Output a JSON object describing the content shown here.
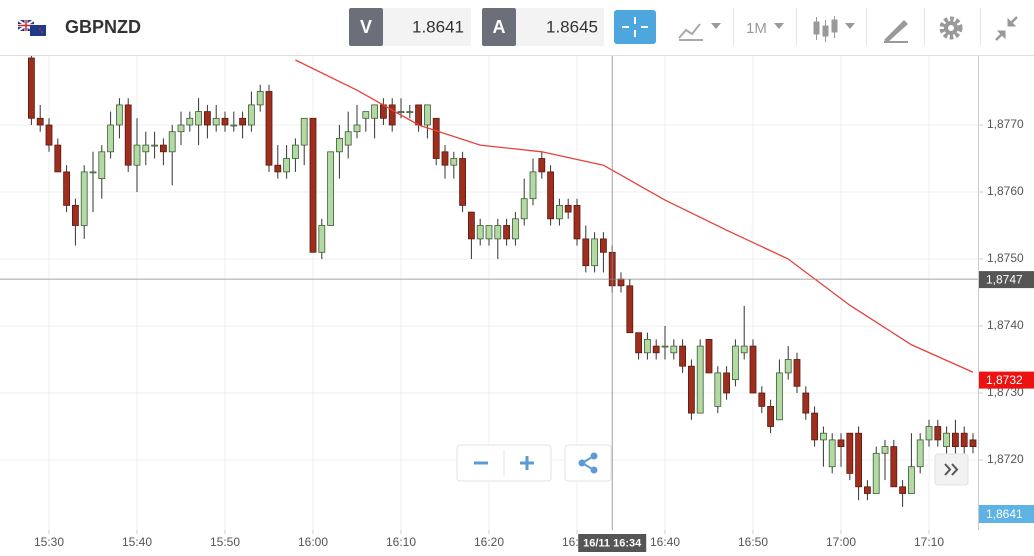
{
  "header": {
    "symbol": "GBPNZD",
    "bid_label": "V",
    "bid": "1.8641",
    "ask_label": "A",
    "ask": "1.8645",
    "timeframe": "1M"
  },
  "chart_data": {
    "type": "candlestick",
    "x": [
      "15:28",
      "15:29",
      "15:30",
      "15:31",
      "15:32",
      "15:33",
      "15:34",
      "15:35",
      "15:36",
      "15:37",
      "15:38",
      "15:39",
      "15:40",
      "15:41",
      "15:42",
      "15:43",
      "15:44",
      "15:45",
      "15:46",
      "15:47",
      "15:48",
      "15:49",
      "15:50",
      "15:51",
      "15:52",
      "15:53",
      "15:54",
      "15:55",
      "15:56",
      "15:57",
      "15:58",
      "15:59",
      "16:00",
      "16:01",
      "16:02",
      "16:03",
      "16:04",
      "16:05",
      "16:06",
      "16:07",
      "16:08",
      "16:09",
      "16:10",
      "16:11",
      "16:12",
      "16:13",
      "16:14",
      "16:15",
      "16:16",
      "16:17",
      "16:18",
      "16:19",
      "16:20",
      "16:21",
      "16:22",
      "16:23",
      "16:24",
      "16:25",
      "16:26",
      "16:27",
      "16:28",
      "16:29",
      "16:30",
      "16:31",
      "16:32",
      "16:33",
      "16:34",
      "16:35",
      "16:36",
      "16:37",
      "16:38",
      "16:39",
      "16:40",
      "16:41",
      "16:42",
      "16:43",
      "16:44",
      "16:45",
      "16:46",
      "16:47",
      "16:48",
      "16:49",
      "16:50",
      "16:51",
      "16:52",
      "16:53",
      "16:54",
      "16:55",
      "16:56",
      "16:57",
      "16:58",
      "16:59",
      "17:00",
      "17:01",
      "17:02",
      "17:03",
      "17:04",
      "17:05",
      "17:06",
      "17:07",
      "17:08",
      "17:09",
      "17:10",
      "17:11",
      "17:12",
      "17:13",
      "17:14",
      "17:15"
    ],
    "open": [
      1.878,
      1.8771,
      1.877,
      1.8767,
      1.8763,
      1.8758,
      1.8755,
      1.8763,
      1.8762,
      1.8766,
      1.877,
      1.8773,
      1.8764,
      1.8766,
      1.8767,
      1.8767,
      1.8766,
      1.8769,
      1.877,
      1.877,
      1.8772,
      1.877,
      1.8771,
      1.877,
      1.8771,
      1.877,
      1.8773,
      1.8775,
      1.8764,
      1.8763,
      1.8765,
      1.8767,
      1.8771,
      1.8751,
      1.8755,
      1.8766,
      1.8767,
      1.8769,
      1.8771,
      1.8771,
      1.8773,
      1.8773,
      1.8772,
      1.8772,
      1.8773,
      1.877,
      1.8771,
      1.8766,
      1.8764,
      1.8765,
      1.8757,
      1.8753,
      1.8753,
      1.8753,
      1.8755,
      1.8753,
      1.8756,
      1.8759,
      1.8765,
      1.8763,
      1.8756,
      1.8758,
      1.8758,
      1.8753,
      1.8749,
      1.8753,
      1.8751,
      1.8747,
      1.8746,
      1.8739,
      1.8736,
      1.8737,
      1.8737,
      1.8736,
      1.8737,
      1.8734,
      1.8727,
      1.8738,
      1.8728,
      1.8733,
      1.8732,
      1.8736,
      1.8737,
      1.873,
      1.8728,
      1.8726,
      1.8733,
      1.8735,
      1.873,
      1.8727,
      1.8723,
      1.8719,
      1.8723,
      1.8724,
      1.8724,
      1.8716,
      1.8715,
      1.8721,
      1.8722,
      1.8716,
      1.8715,
      1.8719,
      1.8723,
      1.8725,
      1.8722,
      1.8724,
      1.8724,
      1.8723
    ],
    "high": [
      1.8781,
      1.8773,
      1.8771,
      1.8768,
      1.8764,
      1.8759,
      1.8764,
      1.8766,
      1.8767,
      1.8772,
      1.8774,
      1.8774,
      1.8771,
      1.8769,
      1.8769,
      1.8768,
      1.877,
      1.8772,
      1.8772,
      1.8774,
      1.8773,
      1.8773,
      1.8772,
      1.8772,
      1.8772,
      1.8775,
      1.8776,
      1.8776,
      1.8767,
      1.8767,
      1.8768,
      1.8771,
      1.8771,
      1.8756,
      1.8766,
      1.877,
      1.8772,
      1.8773,
      1.8772,
      1.8773,
      1.8774,
      1.8774,
      1.8774,
      1.8773,
      1.8773,
      1.8773,
      1.8771,
      1.8767,
      1.8766,
      1.8766,
      1.8757,
      1.8756,
      1.8755,
      1.8756,
      1.8756,
      1.8757,
      1.8762,
      1.8765,
      1.8766,
      1.8764,
      1.8759,
      1.8759,
      1.8759,
      1.8755,
      1.8754,
      1.8754,
      1.8752,
      1.8748,
      1.8747,
      1.8739,
      1.8739,
      1.8738,
      1.874,
      1.8738,
      1.8738,
      1.8735,
      1.8738,
      1.8738,
      1.8734,
      1.8734,
      1.8738,
      1.8743,
      1.8738,
      1.8731,
      1.8729,
      1.8735,
      1.8737,
      1.8736,
      1.8731,
      1.8728,
      1.8725,
      1.8724,
      1.8724,
      1.8724,
      1.8725,
      1.8717,
      1.8722,
      1.8723,
      1.8723,
      1.8717,
      1.8724,
      1.8724,
      1.8726,
      1.8726,
      1.8725,
      1.8726,
      1.8725,
      1.8724
    ],
    "low": [
      1.877,
      1.8769,
      1.8766,
      1.8763,
      1.8757,
      1.8752,
      1.8753,
      1.8757,
      1.8759,
      1.8765,
      1.8768,
      1.8763,
      1.876,
      1.8764,
      1.8765,
      1.8764,
      1.8761,
      1.8767,
      1.8769,
      1.8767,
      1.8768,
      1.8769,
      1.8769,
      1.8769,
      1.8768,
      1.8769,
      1.8772,
      1.8763,
      1.8762,
      1.8762,
      1.8763,
      1.8764,
      1.8751,
      1.875,
      1.8755,
      1.8762,
      1.8765,
      1.8768,
      1.8769,
      1.8768,
      1.877,
      1.8769,
      1.8771,
      1.8771,
      1.8769,
      1.8768,
      1.8764,
      1.8762,
      1.8762,
      1.8757,
      1.875,
      1.8752,
      1.8752,
      1.875,
      1.8752,
      1.8752,
      1.8755,
      1.8758,
      1.8762,
      1.8755,
      1.8755,
      1.8756,
      1.8752,
      1.8748,
      1.8748,
      1.8748,
      1.8745,
      1.8745,
      1.8739,
      1.8735,
      1.8735,
      1.8735,
      1.8735,
      1.8735,
      1.8733,
      1.8726,
      1.8727,
      1.8733,
      1.8727,
      1.8729,
      1.8731,
      1.8735,
      1.873,
      1.8727,
      1.8724,
      1.8726,
      1.8732,
      1.873,
      1.8726,
      1.8722,
      1.8719,
      1.8718,
      1.8719,
      1.8717,
      1.8714,
      1.8714,
      1.8715,
      1.8717,
      1.8716,
      1.8713,
      1.8715,
      1.8718,
      1.8722,
      1.8722,
      1.8721,
      1.8721,
      1.8721,
      1.8721
    ],
    "close": [
      1.8771,
      1.877,
      1.8767,
      1.8763,
      1.8758,
      1.8755,
      1.8763,
      1.8763,
      1.8766,
      1.877,
      1.8773,
      1.8764,
      1.8767,
      1.8767,
      1.8767,
      1.8766,
      1.8769,
      1.877,
      1.8771,
      1.8772,
      1.877,
      1.8771,
      1.877,
      1.877,
      1.877,
      1.8773,
      1.8775,
      1.8764,
      1.8763,
      1.8765,
      1.8767,
      1.8771,
      1.8751,
      1.8755,
      1.8766,
      1.8768,
      1.8769,
      1.877,
      1.8772,
      1.8773,
      1.8771,
      1.877,
      1.8772,
      1.8772,
      1.877,
      1.8773,
      1.8765,
      1.8764,
      1.8765,
      1.8758,
      1.8753,
      1.8755,
      1.8755,
      1.8755,
      1.8753,
      1.8756,
      1.8759,
      1.8763,
      1.8763,
      1.8756,
      1.8758,
      1.8757,
      1.8753,
      1.8749,
      1.8753,
      1.8751,
      1.8746,
      1.8746,
      1.8739,
      1.8736,
      1.8738,
      1.8736,
      1.8737,
      1.8737,
      1.8734,
      1.8727,
      1.8737,
      1.8733,
      1.8733,
      1.873,
      1.8737,
      1.8737,
      1.873,
      1.8728,
      1.8725,
      1.8733,
      1.8735,
      1.8731,
      1.8727,
      1.8723,
      1.8724,
      1.8723,
      1.8722,
      1.8718,
      1.8716,
      1.8715,
      1.8721,
      1.8722,
      1.8716,
      1.8715,
      1.8719,
      1.8723,
      1.8725,
      1.8723,
      1.8724,
      1.8722,
      1.8722,
      1.8722
    ],
    "up_color": "#b3d9a5",
    "down_color": "#9e2f1f",
    "moving_average": {
      "color": "#e8403a",
      "x": [
        "15:58",
        "16:05",
        "16:12",
        "16:19",
        "16:26",
        "16:33",
        "16:40",
        "16:47",
        "16:54",
        "17:01",
        "17:08",
        "17:15"
      ],
      "values": [
        1.87797,
        1.87752,
        1.877,
        1.8767,
        1.8766,
        1.8764,
        1.87588,
        1.87543,
        1.875,
        1.87431,
        1.87372,
        1.87331
      ]
    },
    "ylim": [
      1.871,
      1.878
    ],
    "yticks": [
      {
        "value": 1.872,
        "label": "1,8720"
      },
      {
        "value": 1.873,
        "label": "1,8730"
      },
      {
        "value": 1.874,
        "label": "1,8740"
      },
      {
        "value": 1.875,
        "label": "1,8750"
      },
      {
        "value": 1.876,
        "label": "1,8760"
      },
      {
        "value": 1.877,
        "label": "1,8770"
      }
    ],
    "xticks": [
      "15:30",
      "15:40",
      "15:50",
      "16:00",
      "16:10",
      "16:20",
      "16:30",
      "16:40",
      "16:50",
      "17:00",
      "17:10"
    ],
    "grid": true,
    "crosshair": {
      "x": "16:34",
      "x_label": "16/11 16:34",
      "y": {
        "value": 1.8747,
        "label": "1,8747"
      }
    },
    "ma_tag": {
      "value": 1.8732,
      "label": "1,8732"
    },
    "bid_tag": "1,8641"
  }
}
